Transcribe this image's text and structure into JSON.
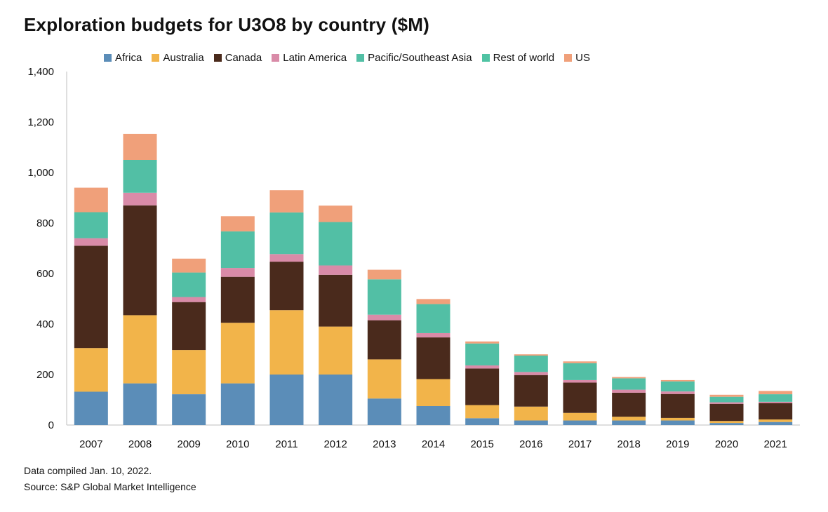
{
  "chart_data": {
    "type": "bar",
    "stacked": true,
    "title": "Exploration budgets for U3O8 by country ($M)",
    "categories": [
      "2007",
      "2008",
      "2009",
      "2010",
      "2011",
      "2012",
      "2013",
      "2014",
      "2015",
      "2016",
      "2017",
      "2018",
      "2019",
      "2020",
      "2021"
    ],
    "ylim": [
      0,
      1400
    ],
    "yticks": [
      "0",
      "200",
      "400",
      "600",
      "800",
      "1,000",
      "1,200",
      "1,400"
    ],
    "legend_position": "top",
    "series": [
      {
        "name": "Africa",
        "color": "#5b8db8",
        "values": [
          132,
          165,
          122,
          165,
          200,
          200,
          105,
          75,
          27,
          18,
          18,
          18,
          18,
          8,
          12
        ]
      },
      {
        "name": "Australia",
        "color": "#f2b44a",
        "values": [
          173,
          270,
          175,
          240,
          255,
          190,
          155,
          107,
          52,
          55,
          30,
          15,
          10,
          8,
          10
        ]
      },
      {
        "name": "Canada",
        "color": "#4a2a1c",
        "values": [
          405,
          435,
          190,
          182,
          192,
          205,
          155,
          165,
          145,
          125,
          120,
          95,
          95,
          68,
          65
        ]
      },
      {
        "name": "Latin America",
        "color": "#d98ba8",
        "values": [
          30,
          50,
          20,
          35,
          30,
          37,
          22,
          17,
          12,
          12,
          10,
          12,
          10,
          6,
          5
        ]
      },
      {
        "name": "Pacific/Southeast Asia",
        "color": "#52bfa5",
        "values": [
          103,
          130,
          97,
          145,
          165,
          172,
          140,
          115,
          87,
          65,
          67,
          45,
          40,
          22,
          30
        ]
      },
      {
        "name": "Rest of world",
        "color": "#4fc3a3",
        "values": [
          0,
          0,
          0,
          0,
          0,
          0,
          0,
          0,
          0,
          0,
          0,
          0,
          0,
          0,
          0
        ]
      },
      {
        "name": "US",
        "color": "#f0a07a",
        "values": [
          97,
          103,
          55,
          60,
          88,
          65,
          38,
          20,
          8,
          5,
          7,
          5,
          5,
          8,
          13
        ]
      }
    ]
  },
  "footer": {
    "note": "Data compiled Jan. 10, 2022.",
    "source": "Source: S&P Global Market Intelligence"
  }
}
